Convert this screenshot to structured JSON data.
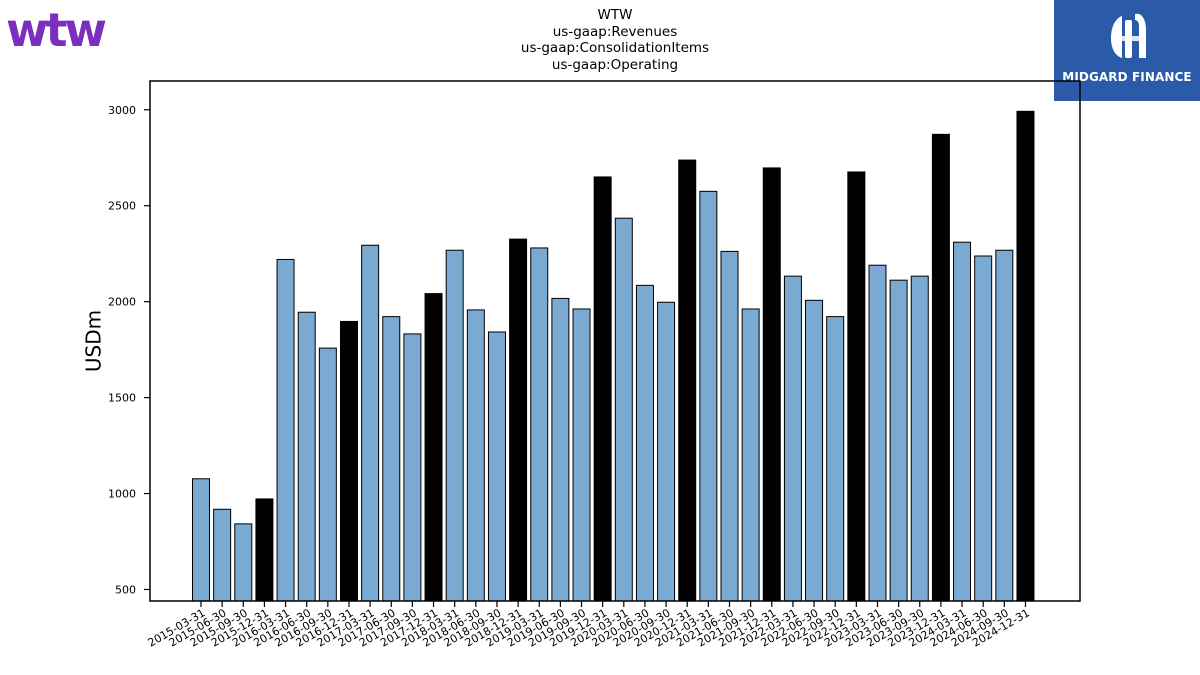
{
  "logos": {
    "left_text": "wtw",
    "left_color": "#7b2fbe",
    "right_text": "MIDGARD FINANCE",
    "right_bg": "#2b5aa8"
  },
  "chart_data": {
    "type": "bar",
    "title_lines": [
      "WTW",
      "us-gaap:Revenues",
      "us-gaap:ConsolidationItems",
      "us-gaap:Operating"
    ],
    "xlabel": "",
    "ylabel": "USDm",
    "ylim": [
      440,
      3150
    ],
    "yticks": [
      500,
      1000,
      1500,
      2000,
      2500,
      3000
    ],
    "grid": false,
    "colors": {
      "quarter": "#7aaad2",
      "year_end": "#000000",
      "edge": "#000000"
    },
    "categories": [
      "2015-03-31",
      "2015-06-30",
      "2015-09-30",
      "2015-12-31",
      "2016-03-31",
      "2016-06-30",
      "2016-09-30",
      "2016-12-31",
      "2017-03-31",
      "2017-06-30",
      "2017-09-30",
      "2017-12-31",
      "2018-03-31",
      "2018-06-30",
      "2018-09-30",
      "2018-12-31",
      "2019-03-31",
      "2019-06-30",
      "2019-09-30",
      "2019-12-31",
      "2020-03-31",
      "2020-06-30",
      "2020-09-30",
      "2020-12-31",
      "2021-03-31",
      "2021-06-30",
      "2021-09-30",
      "2021-12-31",
      "2022-03-31",
      "2022-06-30",
      "2022-09-30",
      "2022-12-31",
      "2023-03-31",
      "2023-06-30",
      "2023-09-30",
      "2023-12-31",
      "2024-03-31",
      "2024-06-30",
      "2024-09-30",
      "2024-12-31"
    ],
    "values": [
      1077,
      918,
      842,
      972,
      2220,
      1945,
      1758,
      1897,
      2294,
      1922,
      1832,
      2042,
      2268,
      1957,
      1842,
      2326,
      2280,
      2017,
      1962,
      2650,
      2435,
      2085,
      1997,
      2738,
      2575,
      2262,
      1962,
      2697,
      2133,
      2007,
      1922,
      2676,
      2190,
      2112,
      2133,
      2872,
      2310,
      2238,
      2268,
      2992
    ],
    "year_end": [
      false,
      false,
      false,
      true,
      false,
      false,
      false,
      true,
      false,
      false,
      false,
      true,
      false,
      false,
      false,
      true,
      false,
      false,
      false,
      true,
      false,
      false,
      false,
      true,
      false,
      false,
      false,
      true,
      false,
      false,
      false,
      true,
      false,
      false,
      false,
      true,
      false,
      false,
      false,
      true
    ]
  }
}
